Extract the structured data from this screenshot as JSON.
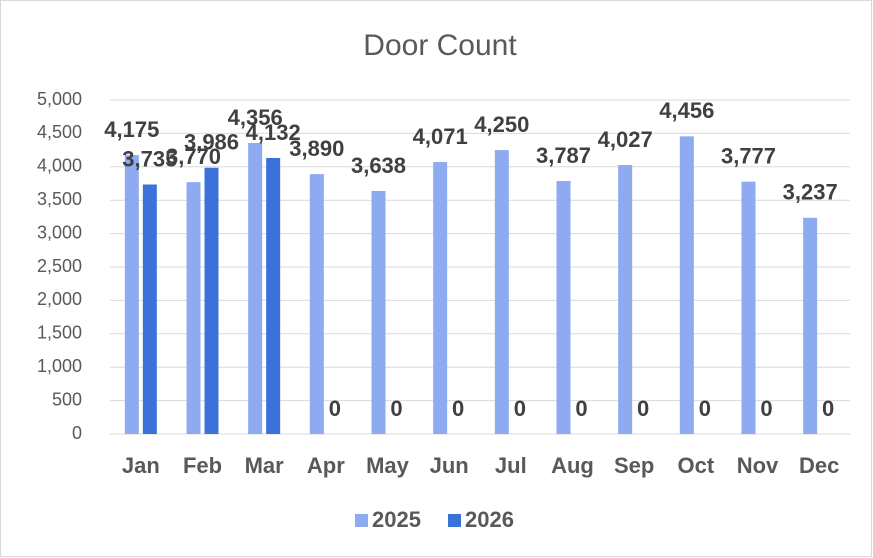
{
  "chart_data": {
    "type": "bar",
    "title": "Door Count",
    "categories": [
      "Jan",
      "Feb",
      "Mar",
      "Apr",
      "May",
      "Jun",
      "Jul",
      "Aug",
      "Sep",
      "Oct",
      "Nov",
      "Dec"
    ],
    "series": [
      {
        "name": "2025",
        "color": "#8eaaf0",
        "values": [
          4175,
          3770,
          4356,
          3890,
          3638,
          4071,
          4250,
          3787,
          4027,
          4456,
          3777,
          3237
        ],
        "value_labels": [
          "4,175",
          "3,770",
          "4,356",
          "3,890",
          "3,638",
          "4,071",
          "4,250",
          "3,787",
          "4,027",
          "4,456",
          "3,777",
          "3,237"
        ]
      },
      {
        "name": "2026",
        "color": "#3b72d9",
        "values": [
          3735,
          3986,
          4132,
          0,
          0,
          0,
          0,
          0,
          0,
          0,
          0,
          0
        ],
        "value_labels": [
          "3,735",
          "3,986",
          "4,132",
          "0",
          "0",
          "0",
          "0",
          "0",
          "0",
          "0",
          "0",
          "0"
        ]
      }
    ],
    "ylim": [
      0,
      5000
    ],
    "yticks": [
      0,
      500,
      {
        "value": 1000,
        "label": "1,000"
      },
      {
        "value": 1500,
        "label": "1,500"
      },
      {
        "value": 2000,
        "label": "2,000"
      },
      {
        "value": 2500,
        "label": "2,500"
      },
      {
        "value": 3000,
        "label": "3,000"
      },
      {
        "value": 3500,
        "label": "3,500"
      },
      {
        "value": 4000,
        "label": "4,000"
      },
      {
        "value": 4500,
        "label": "4,500"
      },
      {
        "value": 5000,
        "label": "5,000"
      }
    ],
    "grid": true,
    "legend": "bottom"
  }
}
